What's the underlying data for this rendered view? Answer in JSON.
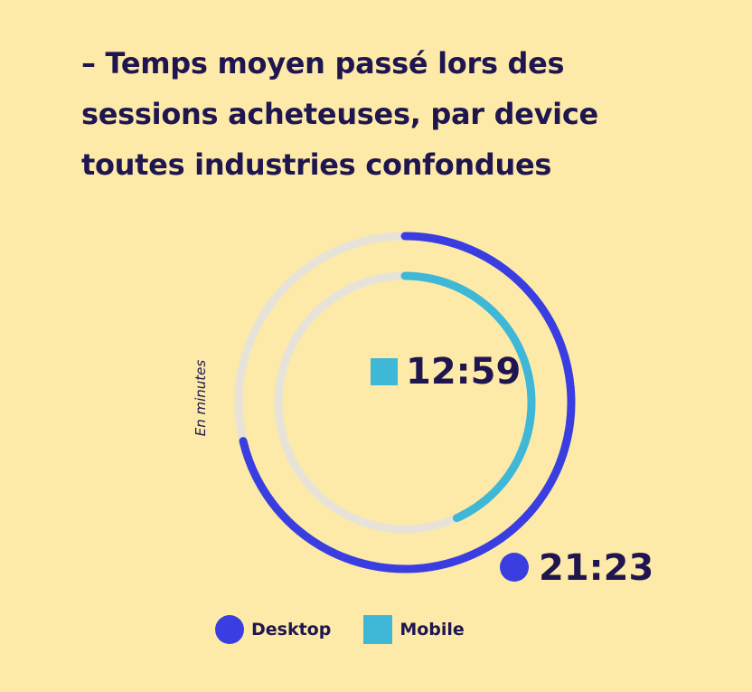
{
  "title_lines": [
    "–  Temps moyen passé lors des",
    "sessions acheteuses, par device",
    "toutes industries confondues"
  ],
  "unit_label": "En minutes",
  "legend": {
    "desktop": "Desktop",
    "mobile": "Mobile"
  },
  "colors": {
    "background": "#fdeaa8",
    "text": "#1f1650",
    "desktop": "#3a3ee0",
    "mobile": "#3fb7d6",
    "track": "#e8e3d8"
  },
  "chart_data": {
    "type": "radial-bar",
    "unit": "En minutes",
    "scale_max_minutes": 30,
    "series": [
      {
        "name": "Desktop",
        "label": "21:23",
        "value_minutes": 21.383,
        "marker": "circle",
        "color": "#3a3ee0"
      },
      {
        "name": "Mobile",
        "label": "12:59",
        "value_minutes": 12.983,
        "marker": "square",
        "color": "#3fb7d6"
      }
    ]
  }
}
